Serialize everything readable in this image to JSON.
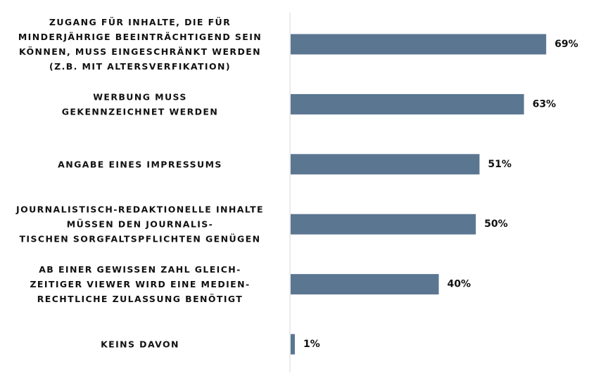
{
  "chart_data": {
    "type": "bar",
    "orientation": "horizontal",
    "categories": [
      [
        "ZUGANG FÜR INHALTE, DIE FÜR",
        "MINDERJÄHRIGE BEEINTRÄCHTIGEND SEIN",
        "KÖNNEN, MUSS EINGESCHRÄNKT WERDEN",
        "(Z.B. MIT  ALTERSVERFIKATION)"
      ],
      [
        "WERBUNG MUSS",
        "GEKENNZEICHNET WERDEN"
      ],
      [
        "ANGABE EINES IMPRESSUMS"
      ],
      [
        "JOURNALISTISCH-REDAKTIONELLE INHALTE",
        "MÜSSEN DEN JOURNALIS-",
        "TISCHEN SORGFALTSPFLICHTEN GENÜGEN"
      ],
      [
        "AB EINER GEWISSEN ZAHL GLEICH-",
        "ZEITIGER VIEWER WIRD EINE MEDIEN-",
        "RECHTLICHE ZULASSUNG BENÖTIGT"
      ],
      [
        "KEINS DAVON"
      ]
    ],
    "values": [
      69,
      63,
      51,
      50,
      40,
      1
    ],
    "value_labels": [
      "69%",
      "63%",
      "51%",
      "50%",
      "40%",
      "1%"
    ],
    "xlim": [
      0,
      76
    ],
    "bar_color": "#5b7691",
    "axis_color": "#d9d9d9",
    "grid": false,
    "legend": "none"
  }
}
